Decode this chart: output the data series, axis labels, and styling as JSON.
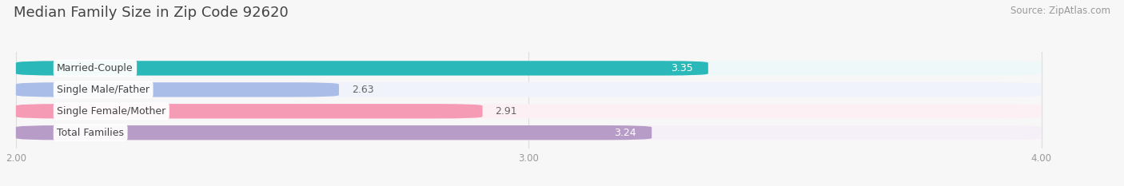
{
  "title": "Median Family Size in Zip Code 92620",
  "source": "Source: ZipAtlas.com",
  "categories": [
    "Married-Couple",
    "Single Male/Father",
    "Single Female/Mother",
    "Total Families"
  ],
  "values": [
    3.35,
    2.63,
    2.91,
    3.24
  ],
  "bar_colors": [
    "#2ab8b8",
    "#aabde8",
    "#f59bb5",
    "#b89cc8"
  ],
  "bar_bg_colors": [
    "#eff8f8",
    "#f0f3fb",
    "#fdf0f4",
    "#f5f0f8"
  ],
  "value_text_colors": [
    "#ffffff",
    "#666666",
    "#666666",
    "#ffffff"
  ],
  "x_min": 2.0,
  "x_max": 4.0,
  "x_ticks": [
    2.0,
    3.0,
    4.0
  ],
  "x_tick_labels": [
    "2.00",
    "3.00",
    "4.00"
  ],
  "label_fontsize": 9.0,
  "value_fontsize": 9.0,
  "title_fontsize": 13,
  "source_fontsize": 8.5,
  "bar_height": 0.68,
  "background_color": "#f7f7f7",
  "label_bg_color": "#ffffff"
}
